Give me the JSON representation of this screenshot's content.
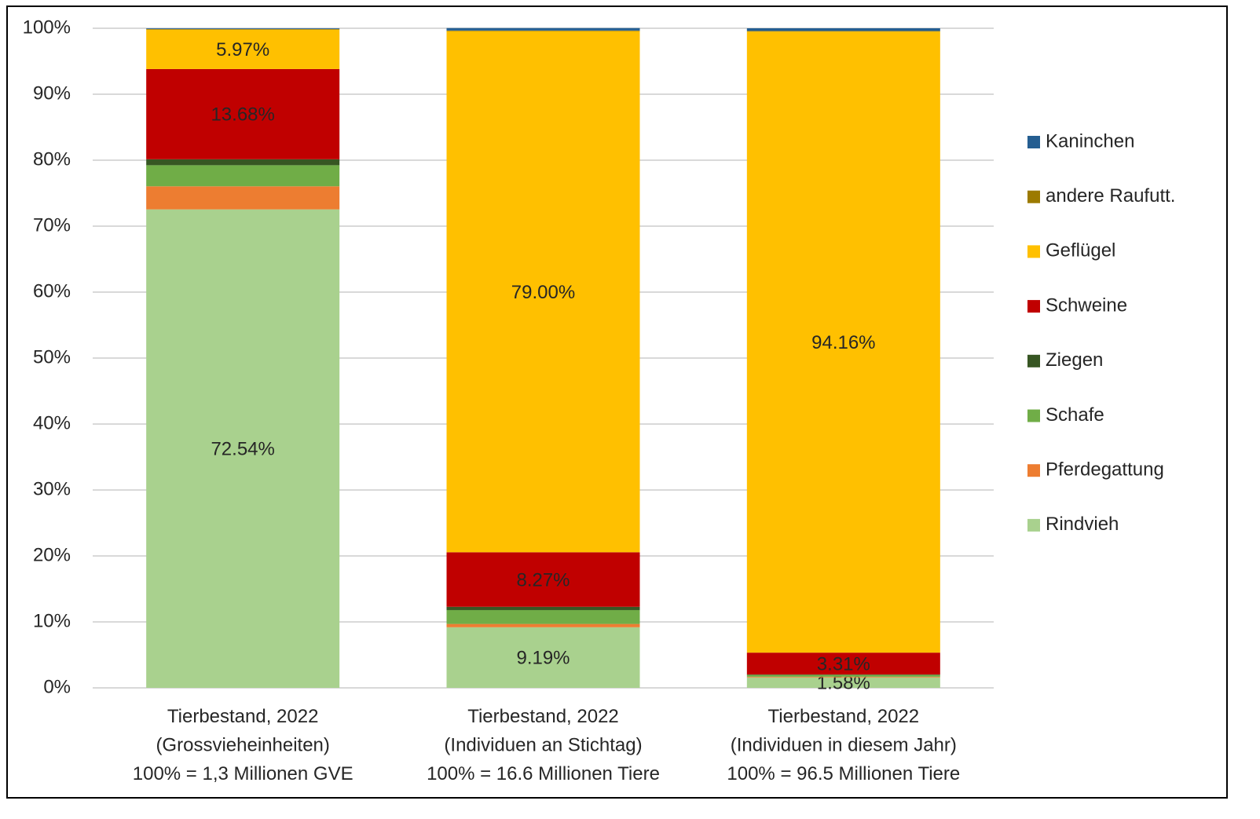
{
  "chart_data": {
    "type": "stacked_bar",
    "categories": [
      "Tierbestand, 2022\n(Grossvieheinheiten)\n100% = 1,3 Millionen GVE",
      "Tierbestand, 2022\n(Individuen an Stichtag)\n100% = 16.6 Millionen Tiere",
      "Tierbestand, 2022\n(Individuen in diesem Jahr)\n100% = 96.5 Millionen Tiere"
    ],
    "series": [
      {
        "name": "Rindvieh",
        "color": "#a9d18e",
        "label_color": "#262626",
        "values": [
          72.54,
          9.19,
          1.58
        ],
        "value_labels": [
          "72.54%",
          "9.19%",
          "1.58%"
        ]
      },
      {
        "name": "Pferdegattung",
        "color": "#ed7d31",
        "values": [
          3.5,
          0.5,
          0.1
        ]
      },
      {
        "name": "Schafe",
        "color": "#70ad47",
        "values": [
          3.2,
          2.1,
          0.3
        ]
      },
      {
        "name": "Ziegen",
        "color": "#375623",
        "values": [
          0.9,
          0.5,
          0.05
        ]
      },
      {
        "name": "Schweine",
        "color": "#c00000",
        "label_color": "#ffffff",
        "values": [
          13.68,
          8.27,
          3.31
        ],
        "value_labels": [
          "13.68%",
          "8.27%",
          "3.31%"
        ]
      },
      {
        "name": "Geflügel",
        "color": "#ffc000",
        "label_color": "#262626",
        "values": [
          5.97,
          79.0,
          94.16
        ],
        "value_labels": [
          "5.97%",
          "79.00%",
          "94.16%"
        ]
      },
      {
        "name": "andere Raufutt.",
        "color": "#9c7a00",
        "values": [
          0.1,
          0.1,
          0.1
        ]
      },
      {
        "name": "Kaninchen",
        "color": "#255e91",
        "values": [
          0.1,
          0.37,
          0.4
        ]
      }
    ],
    "ylim": [
      0,
      100
    ],
    "yticks": [
      {
        "value": 0,
        "label": "0%"
      },
      {
        "value": 10,
        "label": "10%"
      },
      {
        "value": 20,
        "label": "20%"
      },
      {
        "value": 30,
        "label": "30%"
      },
      {
        "value": 40,
        "label": "40%"
      },
      {
        "value": 50,
        "label": "50%"
      },
      {
        "value": 60,
        "label": "60%"
      },
      {
        "value": 70,
        "label": "70%"
      },
      {
        "value": 80,
        "label": "80%"
      },
      {
        "value": 90,
        "label": "90%"
      },
      {
        "value": 100,
        "label": "100%"
      }
    ],
    "grid": true,
    "legend": "right"
  }
}
